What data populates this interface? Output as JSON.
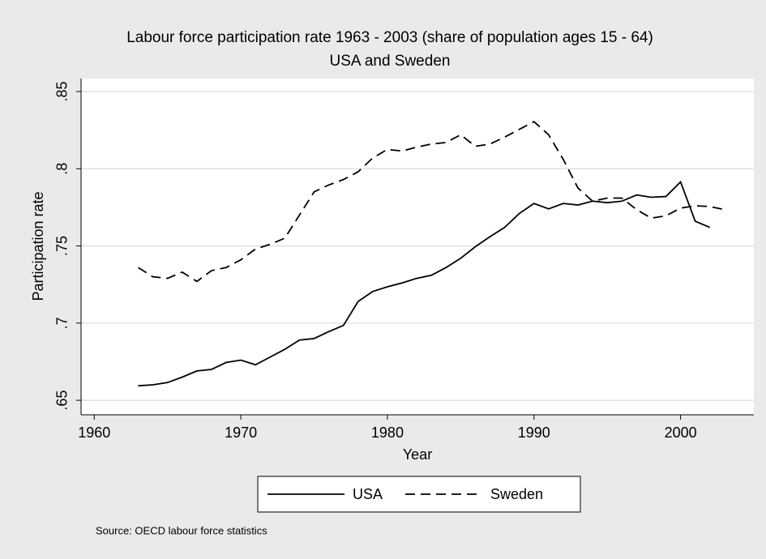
{
  "chart_data": {
    "type": "line",
    "title": "Labour force participation rate 1963 - 2003 (share of population ages 15 - 64)",
    "subtitle": "USA and Sweden",
    "x_label": "Year",
    "y_label": "Participation rate",
    "note": "Source: OECD labour force statistics",
    "x": [
      1963,
      1964,
      1965,
      1966,
      1967,
      1968,
      1969,
      1970,
      1971,
      1972,
      1973,
      1974,
      1975,
      1976,
      1977,
      1978,
      1979,
      1980,
      1981,
      1982,
      1983,
      1984,
      1985,
      1986,
      1987,
      1988,
      1989,
      1990,
      1991,
      1992,
      1993,
      1994,
      1995,
      1996,
      1997,
      1998,
      1999,
      2000,
      2001,
      2002,
      2003
    ],
    "series": [
      {
        "name": "USA",
        "color": "#000000",
        "line_style": "solid",
        "values": [
          0.6594,
          0.66,
          0.6615,
          0.665,
          0.669,
          0.67,
          0.6745,
          0.676,
          0.673,
          0.678,
          0.683,
          0.689,
          0.69,
          0.6945,
          0.6985,
          0.714,
          0.7205,
          0.7235,
          0.726,
          0.729,
          0.731,
          0.736,
          0.742,
          0.7495,
          0.756,
          0.762,
          0.771,
          0.7775,
          0.774,
          0.7775,
          0.7765,
          0.779,
          0.778,
          0.779,
          0.783,
          0.7815,
          0.782,
          0.7915,
          0.766,
          0.762,
          null
        ]
      },
      {
        "name": "Sweden",
        "color": "#000000",
        "line_style": "dashed",
        "values": [
          0.736,
          0.73,
          0.729,
          0.733,
          0.727,
          0.734,
          0.736,
          0.741,
          0.748,
          0.751,
          0.755,
          0.77,
          0.785,
          0.7895,
          0.793,
          0.798,
          0.807,
          0.8125,
          0.8115,
          0.814,
          0.816,
          0.817,
          0.822,
          0.8145,
          0.816,
          0.8205,
          0.8255,
          0.8305,
          0.822,
          0.806,
          0.7875,
          0.779,
          0.781,
          0.781,
          0.7735,
          0.768,
          0.7695,
          0.7745,
          0.776,
          0.7755,
          0.7735
        ]
      }
    ],
    "xlim": [
      1959.1,
      2005
    ],
    "xticks": [
      1960,
      1970,
      1980,
      1990,
      2000
    ],
    "ylim": [
      0.6406,
      0.8584
    ],
    "yticks": [
      {
        "value": 0.65,
        "label": ".65"
      },
      {
        "value": 0.7,
        "label": ".7"
      },
      {
        "value": 0.75,
        "label": ".75"
      },
      {
        "value": 0.8,
        "label": ".8"
      },
      {
        "value": 0.85,
        "label": ".85"
      }
    ],
    "grid": true,
    "legend": "bottom"
  }
}
